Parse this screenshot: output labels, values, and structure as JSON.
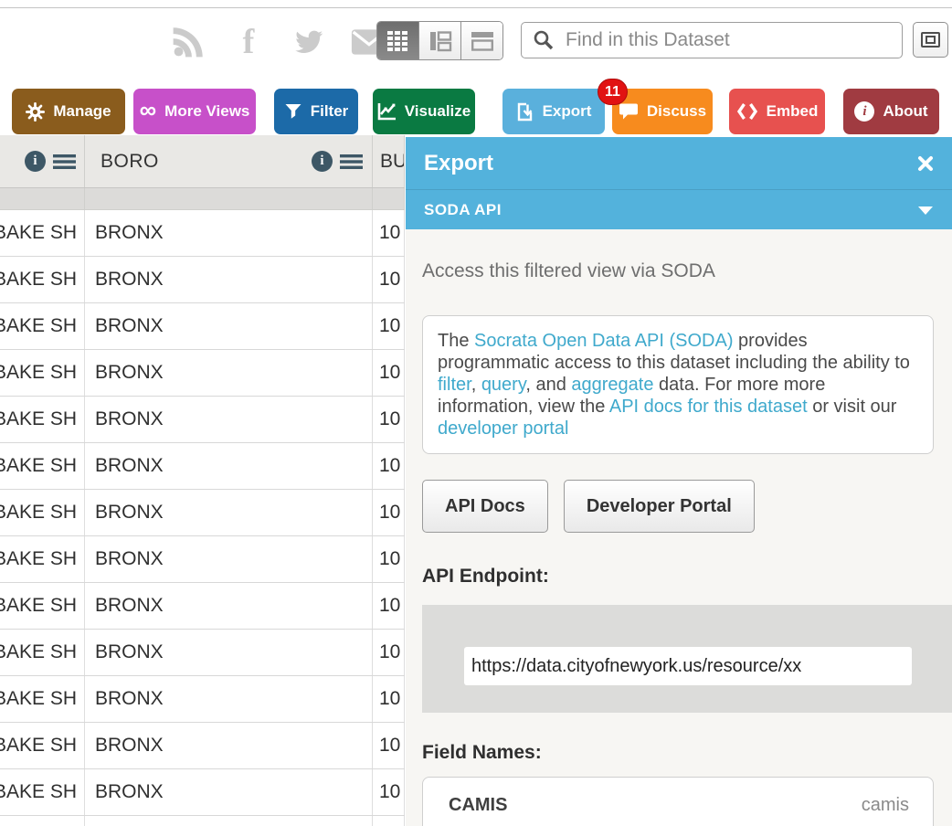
{
  "header": {
    "social_icons": [
      "rss-icon",
      "facebook-icon",
      "twitter-icon",
      "email-icon"
    ],
    "facebook_glyph": "f",
    "view_toggles": [
      "table-view",
      "rich-list-view",
      "page-view"
    ],
    "search": {
      "placeholder": "Find in this Dataset"
    }
  },
  "toolbar": {
    "buttons": [
      {
        "label": "Manage",
        "color": "#8a5c1d",
        "icon": "gear-icon"
      },
      {
        "label": "More Views",
        "color": "#c750c9",
        "icon": "infinity-icon"
      },
      {
        "label": "Filter",
        "color": "#1c6aa8",
        "icon": "funnel-icon"
      },
      {
        "label": "Visualize",
        "color": "#0a7a42",
        "icon": "chart-icon"
      },
      {
        "label": "Export",
        "color": "#5ab0dc",
        "icon": "export-icon",
        "active": true
      },
      {
        "label": "Discuss",
        "color": "#f78b1e",
        "icon": "speech-bubble-icon",
        "badge": "11"
      },
      {
        "label": "Embed",
        "color": "#e7514f",
        "icon": "code-brackets-icon"
      },
      {
        "label": "About",
        "color": "#a03b41",
        "icon": "info-icon"
      }
    ],
    "discuss_badge": "11",
    "infinity_glyph": "∞",
    "info_glyph": "i"
  },
  "table": {
    "columns": [
      {
        "label": ""
      },
      {
        "label": "BORO"
      },
      {
        "label": "BUILDING"
      }
    ],
    "info_icon_glyph": "i",
    "row_template": {
      "dba": "BAKE SH",
      "boro": "BRONX",
      "building": "10"
    },
    "row_count": 14
  },
  "panel": {
    "title": "Export",
    "section_label": "SODA API",
    "intro": "Access this filtered view via SODA",
    "description_segments": [
      {
        "text": "The "
      },
      {
        "text": "Socrata Open Data API (SODA)",
        "link": true
      },
      {
        "text": " provides programmatic access to this dataset including the ability to "
      },
      {
        "text": "filter",
        "link": true
      },
      {
        "text": ", "
      },
      {
        "text": "query",
        "link": true
      },
      {
        "text": ", and "
      },
      {
        "text": "aggregate",
        "link": true
      },
      {
        "text": " data. For more more information, view the "
      },
      {
        "text": "API docs for this dataset",
        "link": true
      },
      {
        "text": " or visit our "
      },
      {
        "text": "developer portal",
        "link": true
      }
    ],
    "buttons": [
      {
        "label": "API Docs"
      },
      {
        "label": "Developer Portal"
      }
    ],
    "api_endpoint_label": "API Endpoint:",
    "api_endpoint_value": "https://data.cityofnewyork.us/resource/xx",
    "field_names_label": "Field Names:",
    "fields": [
      {
        "name": "CAMIS",
        "api": "camis"
      }
    ],
    "accent_color": "#53b2dc",
    "link_color": "#3fa9cc"
  }
}
